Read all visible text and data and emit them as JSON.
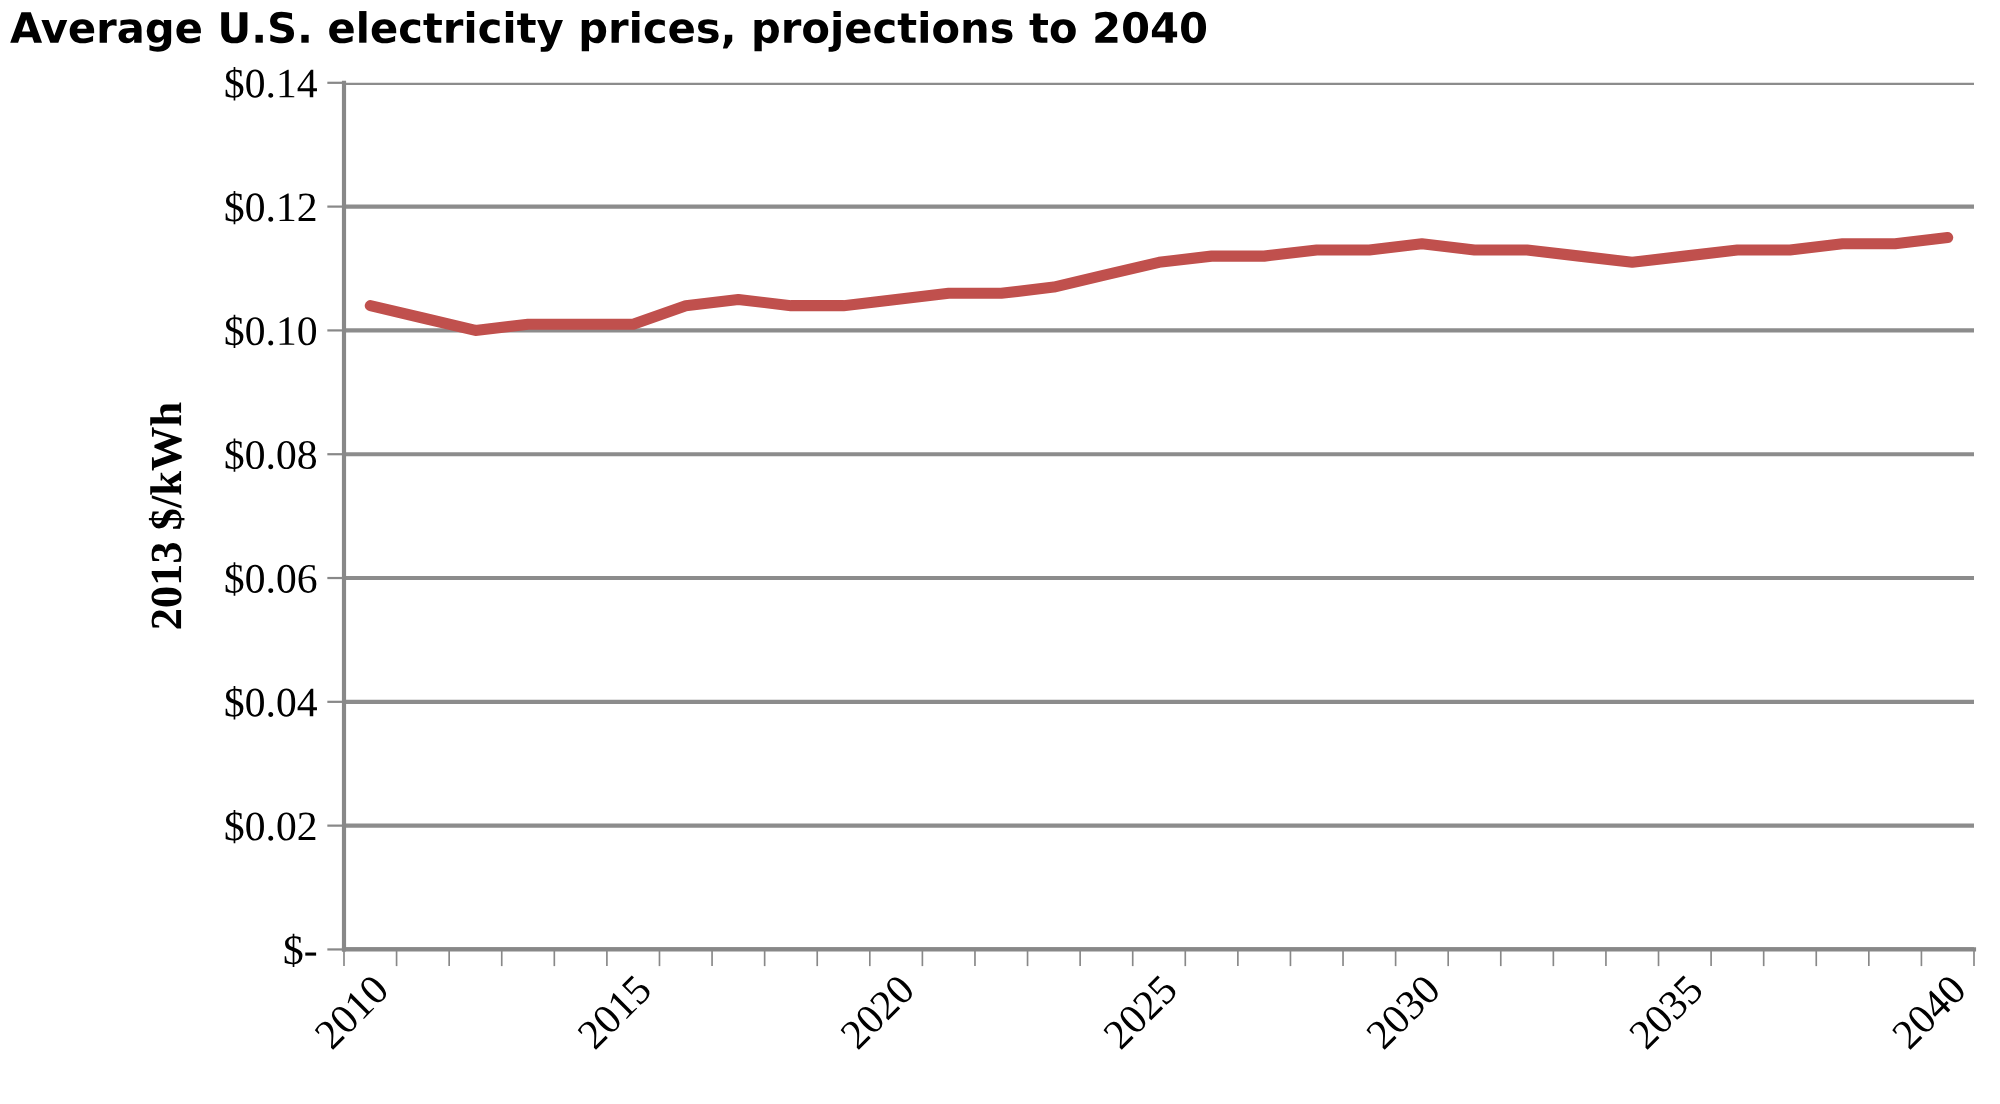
{
  "chart_data": {
    "type": "line",
    "title": "Average U.S. electricity prices, projections to 2040",
    "ylabel": "2013 $/kWh",
    "categories": [
      "2010",
      null,
      null,
      null,
      null,
      "2015",
      null,
      null,
      null,
      null,
      "2020",
      null,
      null,
      null,
      null,
      "2025",
      null,
      null,
      null,
      null,
      "2030",
      null,
      null,
      null,
      null,
      "2035",
      null,
      null,
      null,
      null,
      "2040"
    ],
    "series": [
      {
        "color": "#c0504d",
        "values": [
          0.104,
          0.102,
          0.1,
          0.101,
          0.101,
          0.101,
          0.104,
          0.105,
          0.104,
          0.104,
          0.105,
          0.106,
          0.106,
          0.107,
          0.109,
          0.111,
          0.112,
          0.112,
          0.113,
          0.113,
          0.114,
          0.113,
          0.113,
          0.112,
          0.111,
          0.112,
          0.113,
          0.113,
          0.114,
          0.114,
          0.115
        ]
      }
    ],
    "ylim": [
      0,
      0.14
    ],
    "yticks": [
      {
        "value": 0,
        "label": "$-"
      },
      {
        "value": 0.02,
        "label": "$0.02"
      },
      {
        "value": 0.04,
        "label": "$0.04"
      },
      {
        "value": 0.06,
        "label": "$0.06"
      },
      {
        "value": 0.08,
        "label": "$0.08"
      },
      {
        "value": 0.1,
        "label": "$0.10"
      },
      {
        "value": 0.12,
        "label": "$0.12"
      },
      {
        "value": 0.14,
        "label": "$0.14"
      }
    ],
    "grid": "y",
    "marker": "none",
    "line_style": "solid"
  }
}
